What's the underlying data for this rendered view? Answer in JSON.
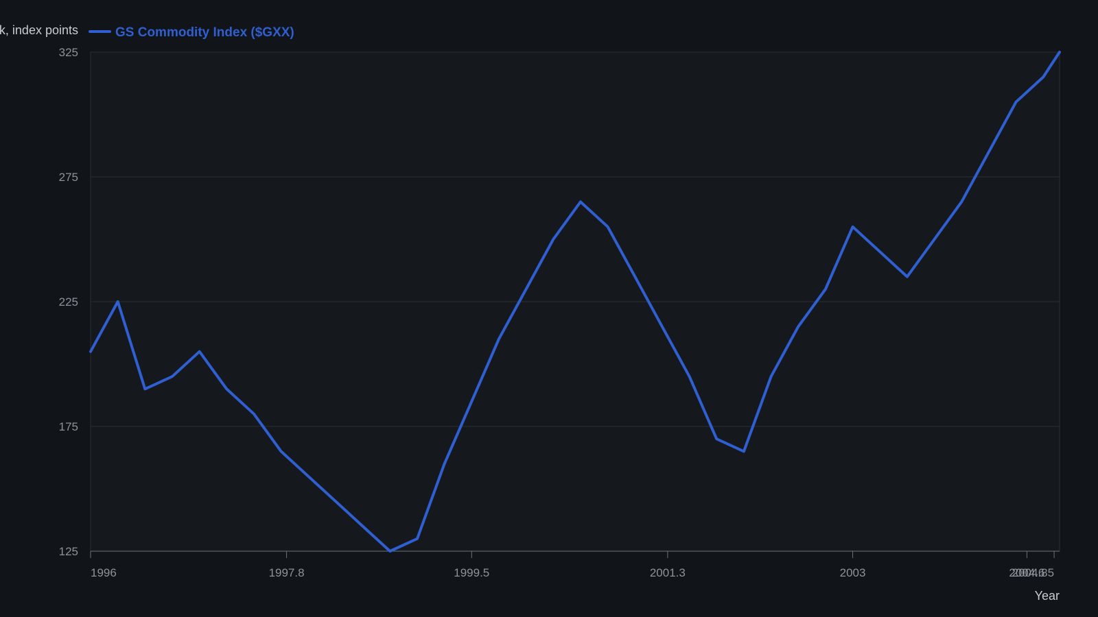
{
  "chart_data": {
    "type": "line",
    "title": "",
    "xlabel": "Year",
    "ylabel": "…k, index points",
    "ylim": [
      125,
      325
    ],
    "xlim": [
      1996,
      2004.9
    ],
    "y_ticks": [
      "125",
      "175",
      "225",
      "275",
      "325"
    ],
    "x_ticks": [
      "1996",
      "1997.8",
      "1999.5",
      "2001.3",
      "2003",
      "2004.6",
      "2004.85"
    ],
    "legend_position": "top-left",
    "grid": true,
    "series": [
      {
        "name": "GS Commodity Index ($GXX)",
        "color": "#2f5fd0",
        "x": [
          1996.0,
          1996.25,
          1996.5,
          1996.75,
          1997.0,
          1997.25,
          1997.5,
          1997.75,
          1998.0,
          1998.25,
          1998.5,
          1998.75,
          1999.0,
          1999.25,
          1999.5,
          1999.75,
          2000.0,
          2000.25,
          2000.5,
          2000.75,
          2001.0,
          2001.25,
          2001.5,
          2001.75,
          2002.0,
          2002.25,
          2002.5,
          2002.75,
          2003.0,
          2003.25,
          2003.5,
          2003.75,
          2004.0,
          2004.25,
          2004.5,
          2004.75,
          2004.9
        ],
        "values": [
          205,
          225,
          190,
          195,
          205,
          190,
          180,
          165,
          155,
          145,
          135,
          125,
          130,
          160,
          185,
          210,
          230,
          250,
          265,
          255,
          235,
          215,
          195,
          170,
          165,
          195,
          215,
          230,
          255,
          245,
          235,
          250,
          265,
          285,
          305,
          315,
          325
        ]
      }
    ]
  }
}
